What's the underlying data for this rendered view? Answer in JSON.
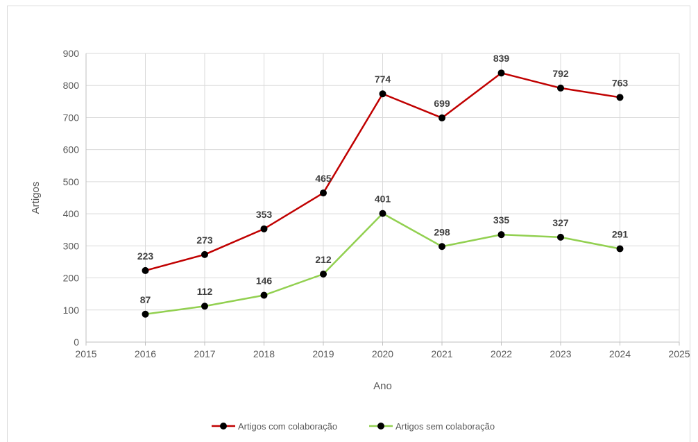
{
  "chart_data": {
    "type": "scatter",
    "title": "",
    "xlabel": "Ano",
    "ylabel": "Artigos",
    "xlim": [
      2015,
      2025
    ],
    "ylim": [
      0,
      900
    ],
    "x_ticks": [
      2015,
      2016,
      2017,
      2018,
      2019,
      2020,
      2021,
      2022,
      2023,
      2024,
      2025
    ],
    "y_ticks": [
      0,
      100,
      200,
      300,
      400,
      500,
      600,
      700,
      800,
      900
    ],
    "grid": true,
    "legend_position": "bottom",
    "series": [
      {
        "name": "Artigos com colaboração",
        "color": "#c00000",
        "x": [
          2016,
          2017,
          2018,
          2019,
          2020,
          2021,
          2022,
          2023,
          2024
        ],
        "y": [
          223,
          273,
          353,
          465,
          774,
          699,
          839,
          792,
          763
        ]
      },
      {
        "name": "Artigos sem colaboração",
        "color": "#92d050",
        "x": [
          2016,
          2017,
          2018,
          2019,
          2020,
          2021,
          2022,
          2023,
          2024
        ],
        "y": [
          87,
          112,
          146,
          212,
          401,
          298,
          335,
          327,
          291
        ]
      }
    ],
    "marker_color": "#000000"
  }
}
